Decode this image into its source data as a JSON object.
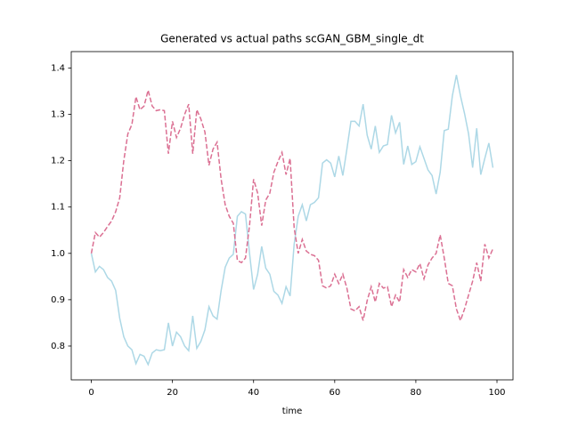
{
  "chart_data": {
    "type": "line",
    "title": "Generated vs actual paths scGAN_GBM_single_dt",
    "x_label": "time",
    "x": [
      0,
      1,
      2,
      3,
      4,
      5,
      6,
      7,
      8,
      9,
      10,
      11,
      12,
      13,
      14,
      15,
      16,
      17,
      18,
      19,
      20,
      21,
      22,
      23,
      24,
      25,
      26,
      27,
      28,
      29,
      30,
      31,
      32,
      33,
      34,
      35,
      36,
      37,
      38,
      39,
      40,
      41,
      42,
      43,
      44,
      45,
      46,
      47,
      48,
      49,
      50,
      51,
      52,
      53,
      54,
      55,
      56,
      57,
      58,
      59,
      60,
      61,
      62,
      63,
      64,
      65,
      66,
      67,
      68,
      69,
      70,
      71,
      72,
      73,
      74,
      75,
      76,
      77,
      78,
      79,
      80,
      81,
      82,
      83,
      84,
      85,
      86,
      87,
      88,
      89,
      90,
      91,
      92,
      93,
      94,
      95,
      96,
      97,
      98,
      99
    ],
    "series": [
      {
        "color": "#add8e6",
        "dash": false,
        "values": [
          1.0,
          0.96,
          0.972,
          0.965,
          0.948,
          0.94,
          0.92,
          0.86,
          0.82,
          0.8,
          0.792,
          0.762,
          0.782,
          0.778,
          0.76,
          0.785,
          0.792,
          0.79,
          0.792,
          0.85,
          0.8,
          0.83,
          0.82,
          0.8,
          0.79,
          0.865,
          0.795,
          0.81,
          0.835,
          0.885,
          0.865,
          0.858,
          0.92,
          0.97,
          0.99,
          0.998,
          1.08,
          1.09,
          1.085,
          1.0,
          0.922,
          0.955,
          1.015,
          0.968,
          0.955,
          0.918,
          0.91,
          0.892,
          0.928,
          0.908,
          1.02,
          1.08,
          1.105,
          1.07,
          1.105,
          1.11,
          1.12,
          1.195,
          1.202,
          1.195,
          1.165,
          1.21,
          1.168,
          1.225,
          1.285,
          1.285,
          1.275,
          1.322,
          1.255,
          1.225,
          1.275,
          1.218,
          1.232,
          1.235,
          1.298,
          1.26,
          1.283,
          1.192,
          1.232,
          1.192,
          1.198,
          1.23,
          1.205,
          1.18,
          1.168,
          1.128,
          1.175,
          1.265,
          1.268,
          1.34,
          1.385,
          1.34,
          1.302,
          1.258,
          1.185,
          1.27,
          1.17,
          1.205,
          1.238,
          1.185
        ]
      },
      {
        "color": "#db7093",
        "dash": true,
        "values": [
          1.0,
          1.045,
          1.035,
          1.045,
          1.058,
          1.07,
          1.09,
          1.12,
          1.2,
          1.258,
          1.278,
          1.338,
          1.31,
          1.318,
          1.352,
          1.318,
          1.308,
          1.31,
          1.308,
          1.215,
          1.285,
          1.25,
          1.27,
          1.3,
          1.322,
          1.215,
          1.31,
          1.29,
          1.262,
          1.19,
          1.225,
          1.24,
          1.16,
          1.105,
          1.08,
          1.065,
          0.985,
          0.98,
          0.99,
          1.06,
          1.16,
          1.13,
          1.06,
          1.115,
          1.13,
          1.175,
          1.198,
          1.218,
          1.17,
          1.205,
          1.055,
          1.0,
          1.03,
          1.005,
          0.998,
          0.995,
          0.985,
          0.93,
          0.925,
          0.93,
          0.955,
          0.935,
          0.955,
          0.925,
          0.88,
          0.876,
          0.885,
          0.855,
          0.898,
          0.928,
          0.895,
          0.935,
          0.925,
          0.928,
          0.885,
          0.91,
          0.895,
          0.965,
          0.948,
          0.965,
          0.96,
          0.978,
          0.945,
          0.975,
          0.99,
          1.0,
          1.04,
          0.99,
          0.935,
          0.93,
          0.88,
          0.855,
          0.88,
          0.91,
          0.94,
          0.98,
          0.94,
          1.02,
          0.99,
          1.01
        ]
      }
    ],
    "xlim": [
      -4.95,
      103.95
    ],
    "ylim": [
      0.727,
      1.4355
    ],
    "xticks": [
      0,
      20,
      40,
      60,
      80,
      100
    ],
    "yticks": [
      0.8,
      0.9,
      {
        "value": 1,
        "label": "1.0"
      },
      1.1,
      1.2,
      1.3,
      1.4
    ]
  }
}
